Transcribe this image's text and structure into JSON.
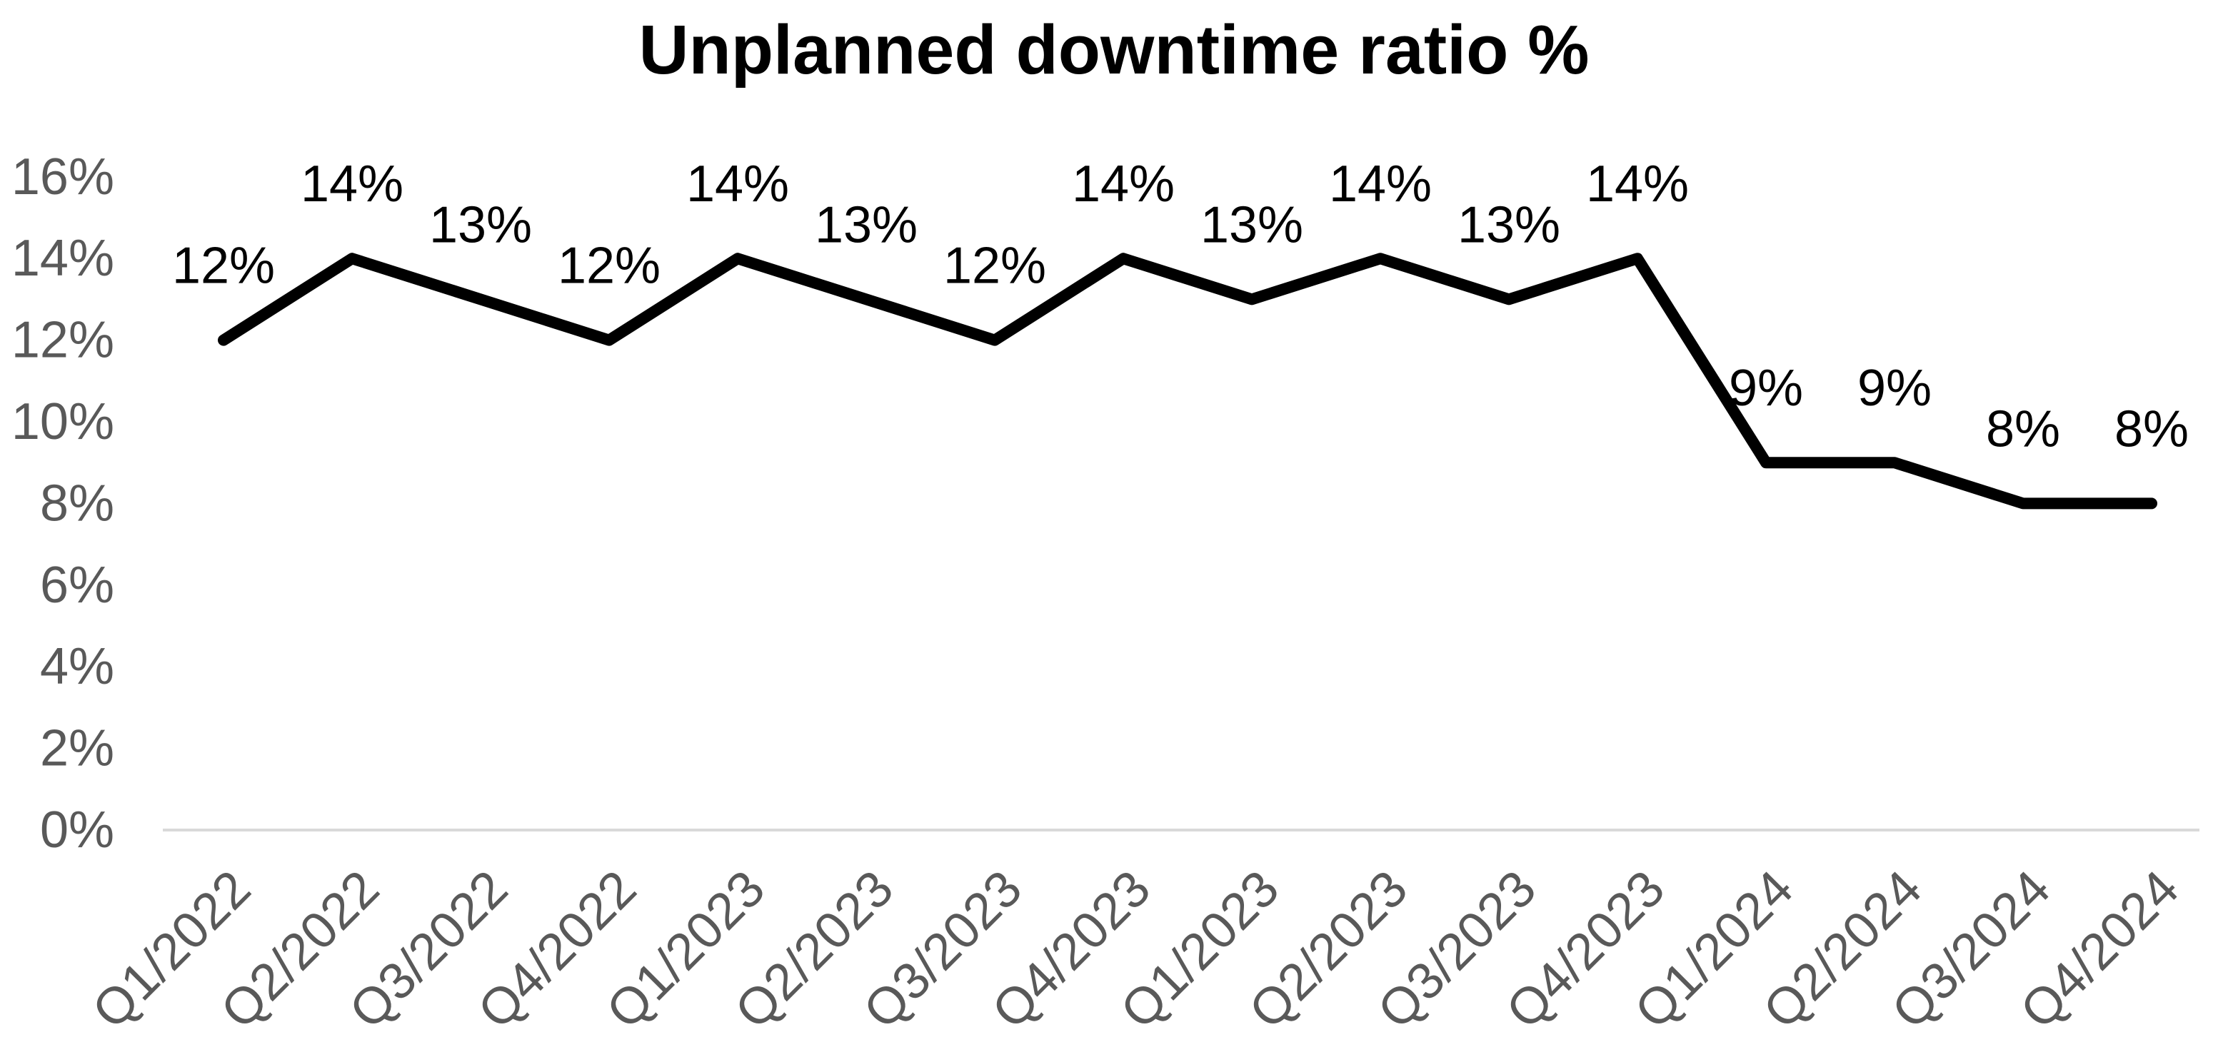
{
  "chart_data": {
    "type": "line",
    "title": "Unplanned downtime ratio %",
    "categories": [
      "Q1/2022",
      "Q2/2022",
      "Q3/2022",
      "Q4/2022",
      "Q1/2023",
      "Q2/2023",
      "Q3/2023",
      "Q4/2023",
      "Q1/2023",
      "Q2/2023",
      "Q3/2023",
      "Q4/2023",
      "Q1/2024",
      "Q2/2024",
      "Q3/2024",
      "Q4/2024"
    ],
    "values": [
      12,
      14,
      13,
      12,
      14,
      13,
      12,
      14,
      13,
      14,
      13,
      14,
      9,
      9,
      8,
      8
    ],
    "data_labels": [
      "12%",
      "14%",
      "13%",
      "12%",
      "14%",
      "13%",
      "12%",
      "14%",
      "13%",
      "14%",
      "13%",
      "14%",
      "9%",
      "9%",
      "8%",
      "8%"
    ],
    "y_ticks": [
      {
        "value": 0,
        "label": "0%"
      },
      {
        "value": 2,
        "label": "2%"
      },
      {
        "value": 4,
        "label": "4%"
      },
      {
        "value": 6,
        "label": "6%"
      },
      {
        "value": 8,
        "label": "8%"
      },
      {
        "value": 10,
        "label": "10%"
      },
      {
        "value": 12,
        "label": "12%"
      },
      {
        "value": 14,
        "label": "14%"
      },
      {
        "value": 16,
        "label": "16%"
      }
    ],
    "ylim": [
      0,
      16
    ],
    "xlabel": "",
    "ylabel": "",
    "grid": false,
    "legend": "none",
    "line_color": "#000000",
    "data_label_color": "#000000",
    "axis_label_color": "#595959",
    "axis_line_color": "#d9d9d9",
    "background": "#ffffff"
  }
}
